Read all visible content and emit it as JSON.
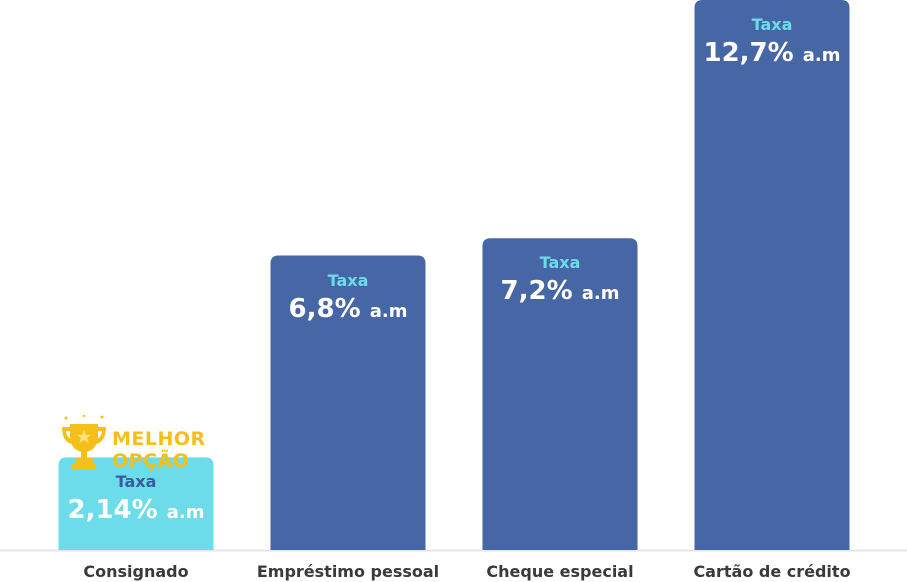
{
  "chart_data": {
    "type": "bar",
    "categories": [
      "Consignado",
      "Empréstimo pessoal",
      "Cheque especial",
      "Cartão de crédito"
    ],
    "values": [
      2.14,
      6.8,
      7.2,
      12.7
    ],
    "value_labels": [
      "2,14%",
      "6,8%",
      "7,2%",
      "12,7%"
    ],
    "value_caption": "Taxa",
    "value_unit": "a.m",
    "title": "",
    "xlabel": "",
    "ylabel": "",
    "ylim": [
      0,
      12.7
    ],
    "grid": false,
    "highlight_index": 0
  },
  "badge": {
    "line1": "MELHOR",
    "line2": "OPÇÃO",
    "icon": "trophy-icon"
  },
  "colors": {
    "bar": "#4766a6",
    "highlight": "#6cdcea",
    "highlight_text": "#3a5b9e",
    "caption": "#6cdcea",
    "badge": "#f5bf1a",
    "baseline": "#e6e6e6"
  }
}
